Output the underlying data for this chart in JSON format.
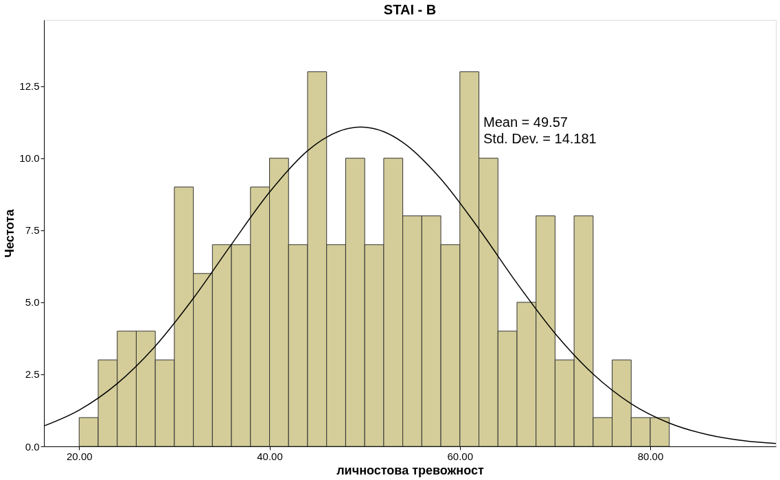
{
  "chart_data": {
    "type": "histogram",
    "title": "STAI - B",
    "xlabel": "личностова тревожност",
    "ylabel": "Честота",
    "bins": [
      20,
      22,
      24,
      26,
      28,
      30,
      32,
      34,
      36,
      38,
      40,
      42,
      44,
      46,
      48,
      50,
      52,
      54,
      56,
      58,
      60,
      62,
      64,
      66,
      68,
      70,
      72,
      74,
      76,
      78,
      80,
      82
    ],
    "values": [
      1,
      3,
      4,
      4,
      3,
      9,
      6,
      7,
      7,
      9,
      10,
      7,
      13,
      7,
      10,
      7,
      10,
      8,
      8,
      7,
      13,
      10,
      4,
      5,
      8,
      3,
      8,
      1,
      3,
      1,
      1
    ],
    "color": "#d4cd99",
    "series": [
      {
        "type": "line",
        "color": "#000000",
        "x": [
          16.3,
          20,
          24,
          28,
          32,
          36,
          40,
          44,
          46,
          49.57,
          52,
          54,
          58,
          62,
          66,
          70,
          74,
          78,
          82,
          86,
          90,
          93.2
        ],
        "values": [
          0.71,
          1.26,
          2.18,
          3.48,
          5.14,
          7.01,
          8.82,
          10.26,
          10.73,
          11.08,
          10.92,
          10.55,
          9.28,
          7.55,
          5.66,
          3.92,
          2.51,
          1.48,
          0.81,
          0.41,
          0.19,
          0.1
        ]
      }
    ],
    "xlim": [
      16.3,
      93.2
    ],
    "ylim": [
      0,
      14.8
    ],
    "xticks": [
      {
        "value": 20,
        "label": "20.00"
      },
      {
        "value": 40,
        "label": "40.00"
      },
      {
        "value": 60,
        "label": "60.00"
      },
      {
        "value": 80,
        "label": "80.00"
      }
    ],
    "yticks": [
      {
        "value": 0,
        "label": "0.0"
      },
      {
        "value": 2.5,
        "label": "2.5"
      },
      {
        "value": 5,
        "label": "5.0"
      },
      {
        "value": 7.5,
        "label": "7.5"
      },
      {
        "value": 10,
        "label": "10.0"
      },
      {
        "value": 12.5,
        "label": "12.5"
      }
    ],
    "annotations": [
      "Mean = 49.57",
      "Std. Dev. = 14.181"
    ],
    "grid": false
  }
}
